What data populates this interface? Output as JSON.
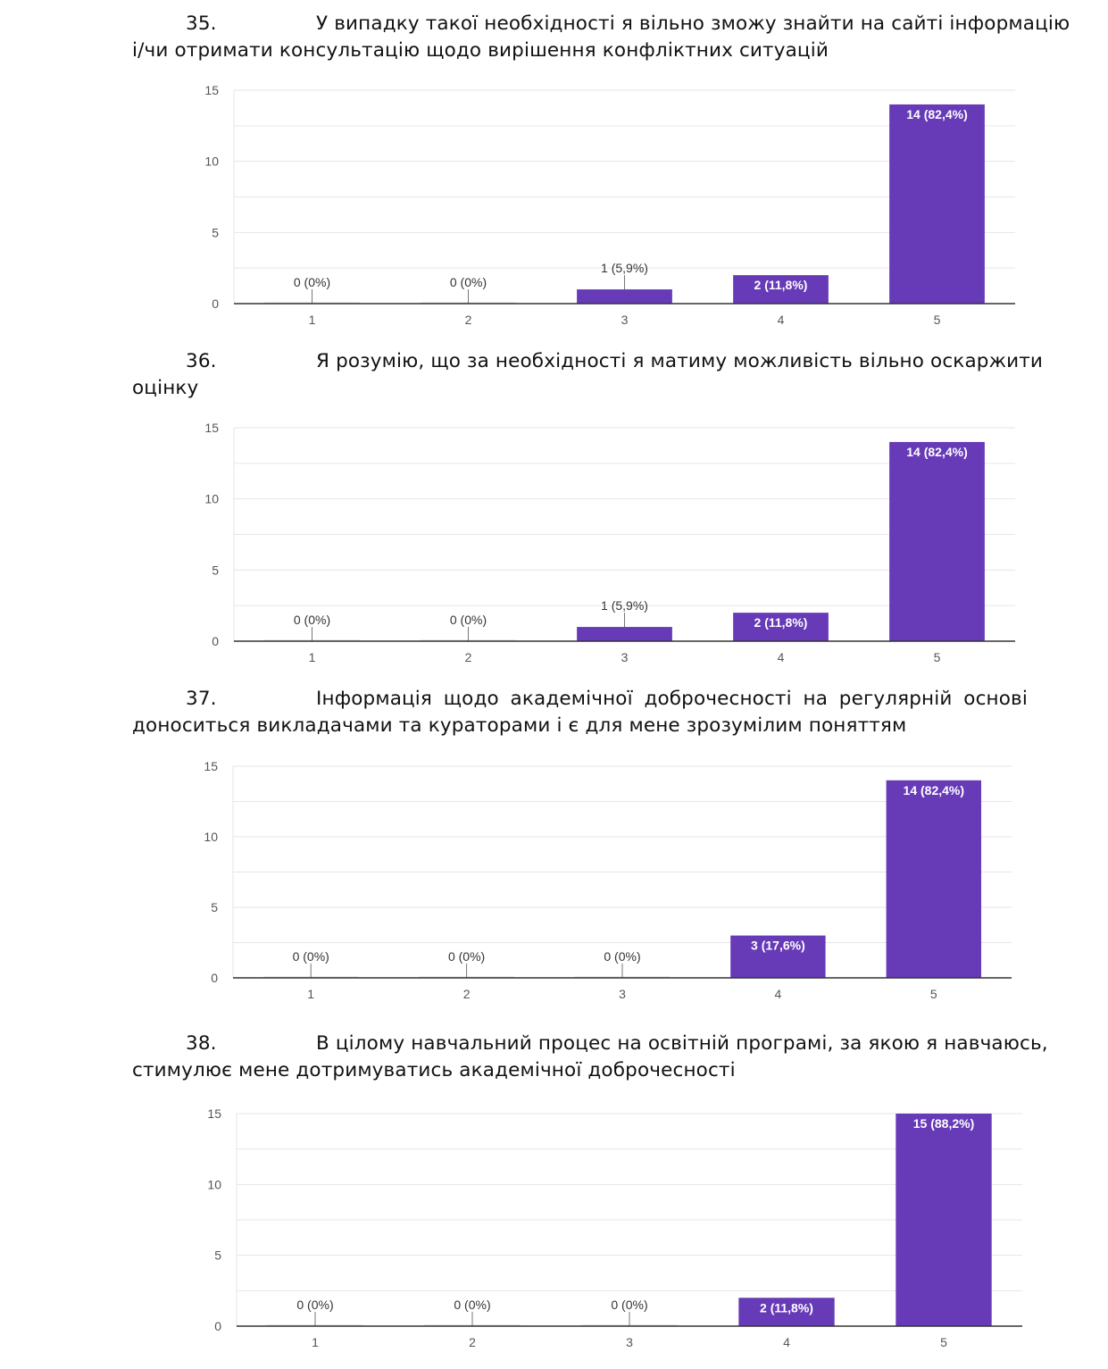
{
  "questions": [
    {
      "number": "35.",
      "line1": "У випадку такої необхідності я вільно зможу знайти на сайті інформацію",
      "line2": "і/чи отримати консультацію щодо вирішення конфліктних ситуацій"
    },
    {
      "number": "36.",
      "line1": "Я розумію, що за необхідності я матиму можливість вільно оскаржити",
      "line2": "оцінку"
    },
    {
      "number": "37.",
      "line1": "Інформація щодо академічної доброчесності на регулярній основі",
      "line2": "доноситься викладачами та кураторами і є для мене зрозумілим поняттям"
    },
    {
      "number": "38.",
      "line1": "В цілому навчальний процес на освітній програмі, за якою я навчаюсь,",
      "line2": "стимулює мене дотримуватись академічної доброчесності"
    }
  ],
  "colors": {
    "bar": "#673AB7",
    "grid": "#e6e6e6",
    "axis": "#333333",
    "tick": "#555555"
  },
  "chart_data": [
    {
      "type": "bar",
      "categories": [
        "1",
        "2",
        "3",
        "4",
        "5"
      ],
      "values": [
        0,
        0,
        1,
        2,
        14
      ],
      "labels": [
        "0 (0%)",
        "0 (0%)",
        "1 (5,9%)",
        "2 (11,8%)",
        "14 (82,4%)"
      ],
      "yticks": [
        0,
        5,
        10,
        15
      ],
      "ylim": [
        0,
        15
      ],
      "title": "",
      "xlabel": "",
      "ylabel": ""
    },
    {
      "type": "bar",
      "categories": [
        "1",
        "2",
        "3",
        "4",
        "5"
      ],
      "values": [
        0,
        0,
        1,
        2,
        14
      ],
      "labels": [
        "0 (0%)",
        "0 (0%)",
        "1 (5,9%)",
        "2 (11,8%)",
        "14 (82,4%)"
      ],
      "yticks": [
        0,
        5,
        10,
        15
      ],
      "ylim": [
        0,
        15
      ],
      "title": "",
      "xlabel": "",
      "ylabel": ""
    },
    {
      "type": "bar",
      "categories": [
        "1",
        "2",
        "3",
        "4",
        "5"
      ],
      "values": [
        0,
        0,
        0,
        3,
        14
      ],
      "labels": [
        "0 (0%)",
        "0 (0%)",
        "0 (0%)",
        "3 (17,6%)",
        "14 (82,4%)"
      ],
      "yticks": [
        0,
        5,
        10,
        15
      ],
      "ylim": [
        0,
        15
      ],
      "title": "",
      "xlabel": "",
      "ylabel": ""
    },
    {
      "type": "bar",
      "categories": [
        "1",
        "2",
        "3",
        "4",
        "5"
      ],
      "values": [
        0,
        0,
        0,
        2,
        15
      ],
      "labels": [
        "0 (0%)",
        "0 (0%)",
        "0 (0%)",
        "2 (11,8%)",
        "15 (88,2%)"
      ],
      "yticks": [
        0,
        5,
        10,
        15
      ],
      "ylim": [
        0,
        15
      ],
      "title": "",
      "xlabel": "",
      "ylabel": ""
    }
  ]
}
